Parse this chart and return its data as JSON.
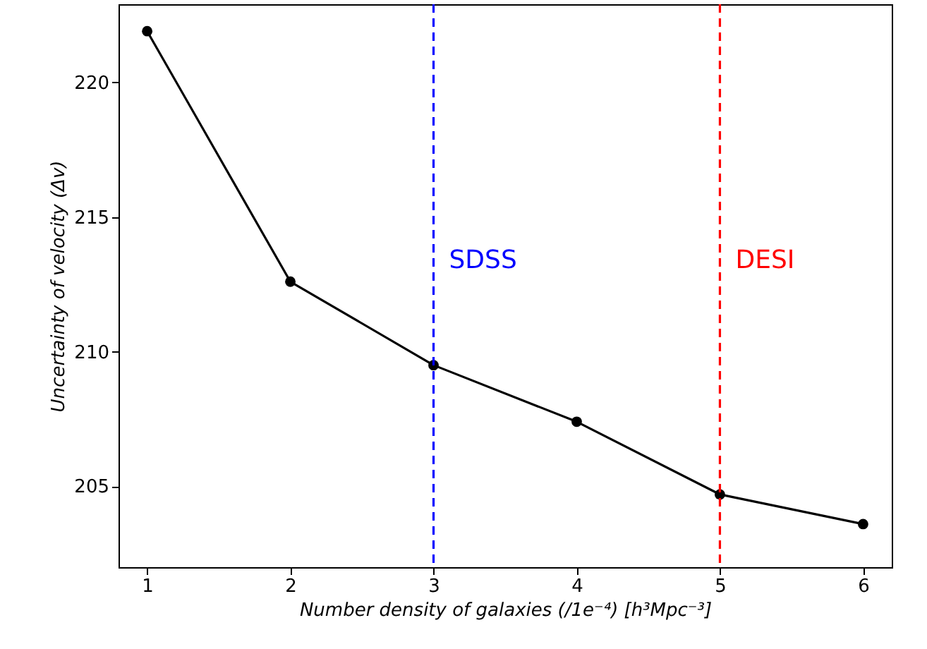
{
  "chart_data": {
    "type": "line",
    "xlabel": "Number density of galaxies (/1e⁻⁴) [h³Mpc⁻³]",
    "ylabel": "Uncertainty of velocity (Δv)",
    "x": [
      1,
      2,
      3,
      4,
      5,
      6
    ],
    "series": [
      {
        "color": "#000000",
        "values": [
          221.9,
          212.6,
          209.5,
          207.4,
          204.7,
          203.6
        ]
      }
    ],
    "xlim": [
      0.8,
      6.2
    ],
    "xticks": [
      1,
      2,
      3,
      4,
      5,
      6
    ],
    "ylim": [
      202,
      222.9
    ],
    "yticks": [
      205,
      210,
      215,
      220
    ],
    "grid": false,
    "marker": "circle",
    "line_style": "solid",
    "ref_lines": [
      {
        "axis": "x",
        "value": 3,
        "label": "SDSS",
        "color": "#0000ff",
        "line_style": "dashed"
      },
      {
        "axis": "x",
        "value": 5,
        "label": "DESI",
        "color": "#ff0000",
        "line_style": "dashed"
      }
    ]
  }
}
